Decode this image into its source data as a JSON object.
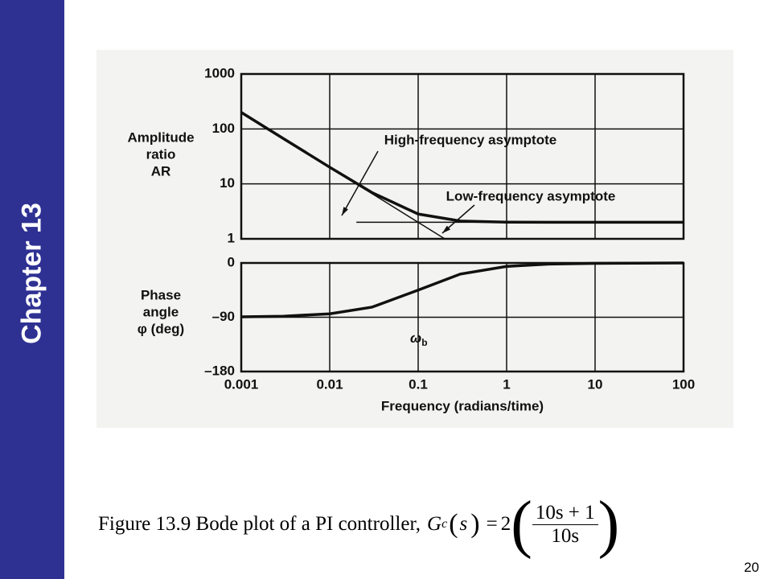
{
  "sidebar": "Chapter 13",
  "chart_data": [
    {
      "type": "line",
      "ylabel": [
        "Amplitude",
        "ratio",
        "AR"
      ],
      "xscale": "log",
      "yscale": "log",
      "xlim": [
        0.001,
        100
      ],
      "xticks": [
        0.001,
        0.01,
        0.1,
        1,
        10,
        100
      ],
      "ylim": [
        1,
        1000
      ],
      "yticks": [
        1,
        10,
        100,
        1000
      ],
      "grid": true,
      "series": [
        {
          "color": "#111111",
          "x": [
            0.001,
            0.003,
            0.01,
            0.03,
            0.1,
            0.3,
            1,
            3,
            10,
            100
          ],
          "values": [
            200,
            66.7,
            20.1,
            6.96,
            2.83,
            2.11,
            2.01,
            2,
            2,
            2
          ]
        },
        {
          "name": "High-frequency asymptote",
          "color": "#111111",
          "x": [
            0.001,
            0.2
          ],
          "values": [
            200,
            1
          ]
        },
        {
          "name": "Low-frequency asymptote",
          "color": "#111111",
          "x": [
            0.02,
            100
          ],
          "values": [
            2,
            2
          ]
        }
      ]
    },
    {
      "type": "line",
      "ylabel": [
        "Phase",
        "angle",
        "φ (deg)"
      ],
      "xlabel": "Frequency (radians/time)",
      "xscale": "log",
      "xlim": [
        0.001,
        100
      ],
      "xticks": [
        0.001,
        0.01,
        0.1,
        1,
        10,
        100
      ],
      "ylim": [
        -180,
        0
      ],
      "yticks": [
        {
          "value": -180,
          "label": "–180"
        },
        {
          "value": -90,
          "label": "–90"
        },
        0
      ],
      "grid": true,
      "annotations": [
        {
          "text": "ω",
          "sub": "b",
          "x": 0.1
        }
      ],
      "series": [
        {
          "color": "#111111",
          "x": [
            0.001,
            0.003,
            0.01,
            0.03,
            0.1,
            0.3,
            1,
            3,
            10,
            100
          ],
          "values": [
            -89.4,
            -88.3,
            -84.3,
            -73.3,
            -45,
            -18.4,
            -5.7,
            -1.9,
            -0.6,
            -0.06
          ]
        }
      ]
    }
  ],
  "caption": "Figure 13.9 Bode plot of a PI controller,",
  "equation": {
    "symbol": "G",
    "sub": "c",
    "arg": "s",
    "gain": "2",
    "numerator": "10s + 1",
    "denominator": "10s"
  },
  "page_number": "20"
}
